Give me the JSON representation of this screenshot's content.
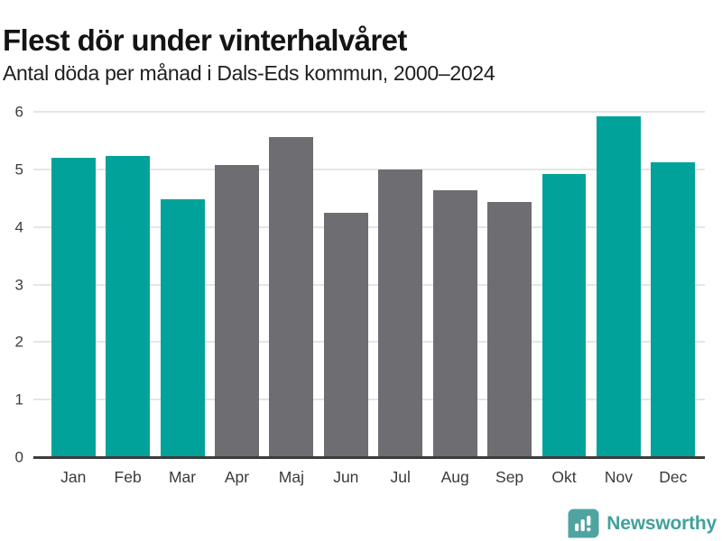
{
  "header": {
    "title": "Flest dör under vinterhalvåret",
    "subtitle": "Antal döda per månad i Dals-Eds kommun, 2000–2024"
  },
  "chart_data": {
    "type": "bar",
    "title": "Flest dör under vinterhalvåret",
    "subtitle": "Antal döda per månad i Dals-Eds kommun, 2000–2024",
    "categories": [
      "Jan",
      "Feb",
      "Mar",
      "Apr",
      "Maj",
      "Jun",
      "Jul",
      "Aug",
      "Sep",
      "Okt",
      "Nov",
      "Dec"
    ],
    "values": [
      5.2,
      5.24,
      4.48,
      5.08,
      5.56,
      4.24,
      5.0,
      4.64,
      4.44,
      4.92,
      5.92,
      5.12
    ],
    "highlighted": [
      true,
      true,
      true,
      false,
      false,
      false,
      false,
      false,
      false,
      true,
      true,
      true
    ],
    "xlabel": "",
    "ylabel": "",
    "ylim": [
      0,
      6
    ],
    "yticks": [
      0,
      1,
      2,
      3,
      4,
      5,
      6
    ],
    "grid": true,
    "legend": "none",
    "colors": {
      "highlight_bar": "#00A29A",
      "base_bar": "#6D6D72",
      "gridline": "#E5E5E5",
      "axis": "#3C3C3C",
      "tick_text": "#3d3d3d"
    }
  },
  "footer": {
    "brand": "Newsworthy",
    "logo_icon": "bar-chart-speech-bubble",
    "brand_color": "#42A09C",
    "icon_color": "#4FA4A1"
  }
}
